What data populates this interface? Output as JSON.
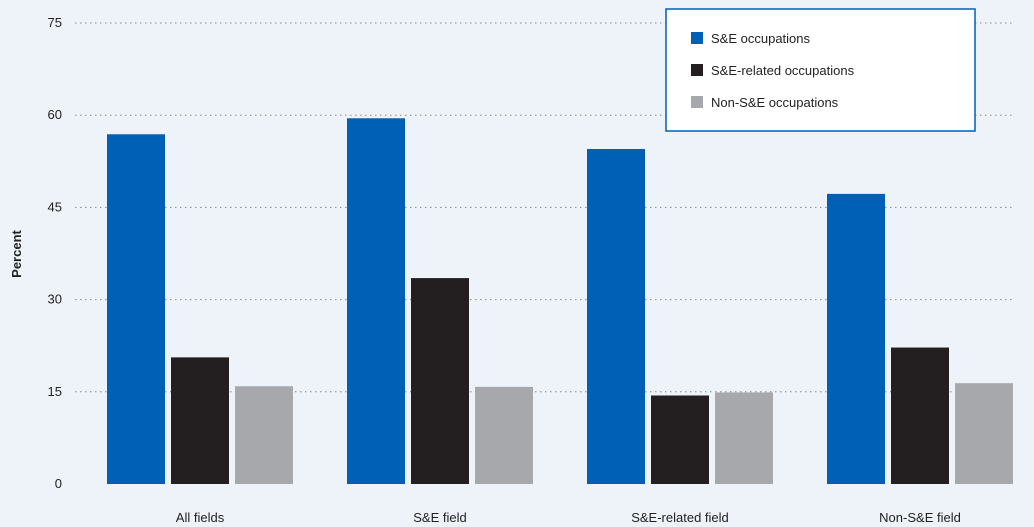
{
  "chart_data": {
    "type": "bar",
    "title": "",
    "xlabel": "",
    "ylabel": "Percent",
    "ylim": [
      0,
      75
    ],
    "yticks": [
      0,
      15,
      30,
      45,
      60,
      75
    ],
    "grid": true,
    "legend_position": "top-right",
    "categories": [
      "All fields",
      "S&E field",
      "S&E-related field",
      "Non-S&E field"
    ],
    "series": [
      {
        "name": "S&E occupations",
        "color": "#0060b6",
        "values": [
          56.9,
          59.5,
          54.5,
          47.2
        ]
      },
      {
        "name": "S&E-related occupations",
        "color": "#231f20",
        "values": [
          20.6,
          33.5,
          14.4,
          22.2
        ]
      },
      {
        "name": "Non-S&E occupations",
        "color": "#a6a8ab",
        "values": [
          15.9,
          15.8,
          14.9,
          16.4
        ]
      }
    ]
  },
  "colors": {
    "background": "#edf3f8",
    "gridline": "#8a8a8a",
    "legend_border": "#0060b6"
  }
}
